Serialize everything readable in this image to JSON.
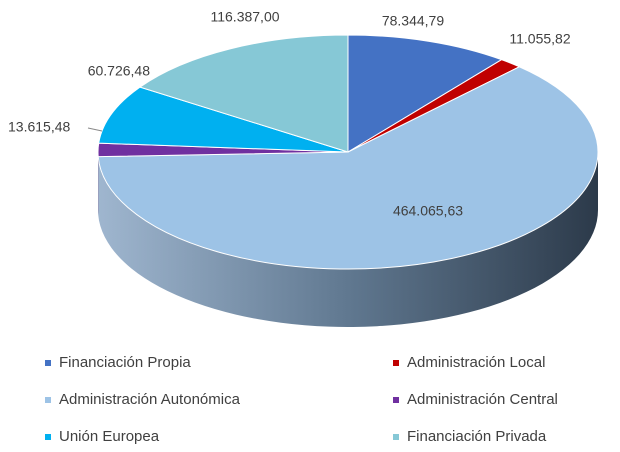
{
  "chart_data": {
    "type": "pie3d",
    "categories": [
      "Financiación Propia",
      "Administración Local",
      "Administración Autonómica",
      "Administración Central",
      "Unión Europea",
      "Financiación Privada"
    ],
    "values": [
      78344.79,
      11055.82,
      464065.63,
      13615.48,
      60726.48,
      116387.0
    ],
    "value_labels": [
      "78.344,79",
      "11.055,82",
      "464.065,63",
      "13.615,48",
      "60.726,48",
      "116.387,00"
    ],
    "colors": [
      "#4472c4",
      "#c00000",
      "#9dc3e6",
      "#7030a0",
      "#00b0f0",
      "#86c8d6"
    ],
    "legend": "bottom"
  }
}
